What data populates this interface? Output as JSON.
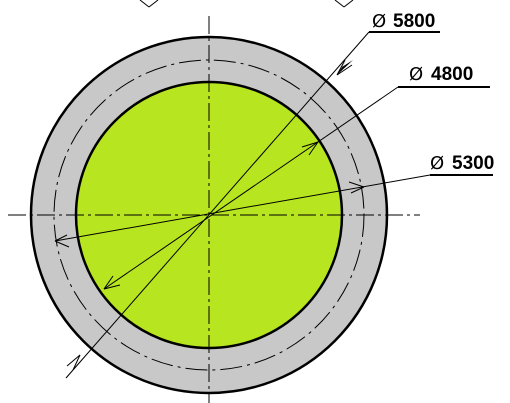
{
  "diameter_symbol": "Ø",
  "dimensions": [
    {
      "id": "outer",
      "value": "5800"
    },
    {
      "id": "inner",
      "value": "4800"
    },
    {
      "id": "middle",
      "value": "5300"
    }
  ],
  "colors": {
    "ring_fill": "#c8c8c8",
    "core_fill": "#b7e51f",
    "outline": "#000000",
    "background": "#ffffff"
  }
}
